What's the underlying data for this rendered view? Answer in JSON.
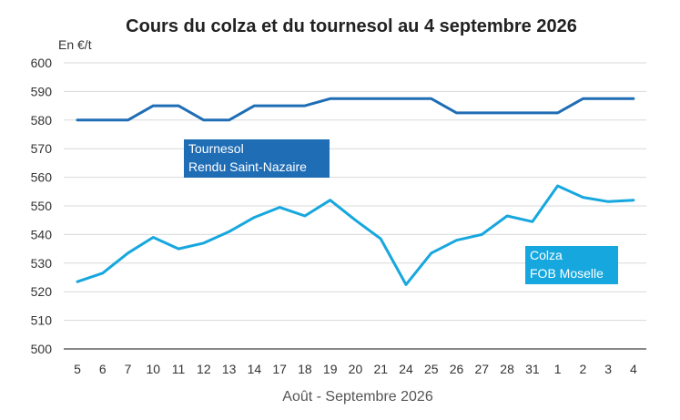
{
  "chart_data": {
    "type": "line",
    "title": "Cours du colza et du tournesol au 4 septembre 2026",
    "ylabel": "En €/t",
    "xlabel": "Août - Septembre 2026",
    "ylim": [
      500,
      600
    ],
    "yticks": [
      500,
      510,
      520,
      530,
      540,
      550,
      560,
      570,
      580,
      590,
      600
    ],
    "categories": [
      "5",
      "6",
      "7",
      "10",
      "11",
      "12",
      "13",
      "14",
      "17",
      "18",
      "19",
      "20",
      "21",
      "24",
      "25",
      "26",
      "27",
      "28",
      "31",
      "1",
      "2",
      "3",
      "4"
    ],
    "grid": true,
    "series": [
      {
        "name": "Tournesol Rendu Saint-Nazaire",
        "label_lines": [
          "Tournesol",
          "Rendu Saint-Nazaire"
        ],
        "color": "#1f6db5",
        "values": [
          580,
          580,
          580,
          585,
          585,
          580,
          580,
          585,
          585,
          585,
          587.5,
          587.5,
          587.5,
          587.5,
          587.5,
          582.5,
          582.5,
          582.5,
          582.5,
          582.5,
          587.5,
          587.5,
          587.5
        ]
      },
      {
        "name": "Colza FOB Moselle",
        "label_lines": [
          "Colza",
          "FOB Moselle"
        ],
        "color": "#16a7de",
        "values": [
          523.5,
          526.5,
          533.5,
          539,
          535,
          537,
          541,
          546,
          549.5,
          546.5,
          552,
          545,
          538.5,
          522.5,
          533.5,
          538,
          540,
          546.5,
          544.5,
          557,
          553,
          551.5,
          552
        ]
      }
    ]
  }
}
